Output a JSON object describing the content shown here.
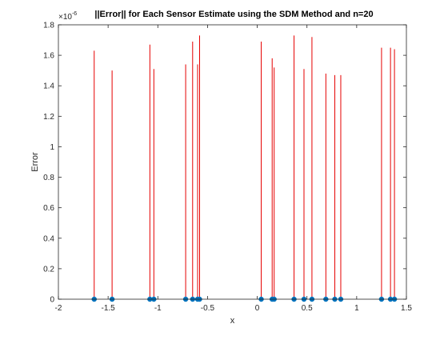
{
  "chart_data": {
    "type": "stem",
    "title": "||Error|| for Each Sensor Estimate using the SDM Method and n=20",
    "xlabel": "x",
    "ylabel": "Error",
    "xlim": [
      -2,
      1.5
    ],
    "ylim": [
      0,
      1.8
    ],
    "x_ticks": [
      -2,
      -1.5,
      -1,
      -0.5,
      0,
      0.5,
      1,
      1.5
    ],
    "x_tick_labels": [
      "-2",
      "-1.5",
      "-1",
      "-0.5",
      "0",
      "0.5",
      "1",
      "1.5"
    ],
    "y_ticks": [
      0,
      0.2,
      0.4,
      0.6,
      0.8,
      1,
      1.2,
      1.4,
      1.6,
      1.8
    ],
    "y_tick_labels": [
      "0",
      "0.2",
      "0.4",
      "0.6",
      "0.8",
      "1",
      "1.2",
      "1.4",
      "1.6",
      "1.8"
    ],
    "y_exponent_label": "×10",
    "y_exponent_power": "-6",
    "grid": false,
    "colors": {
      "stem": "#e60000",
      "marker": "#0072bd",
      "axis": "#262626"
    },
    "series": [
      {
        "name": "",
        "style": "stem-lines",
        "x": [
          -1.64,
          -1.46,
          -1.08,
          -1.04,
          -0.72,
          -0.65,
          -0.6,
          -0.58,
          0.04,
          0.15,
          0.17,
          0.37,
          0.47,
          0.55,
          0.69,
          0.78,
          0.84,
          1.25,
          1.34,
          1.38
        ],
        "y": [
          1.63,
          1.5,
          1.67,
          1.51,
          1.54,
          1.69,
          1.54,
          1.73,
          1.69,
          1.58,
          1.52,
          1.73,
          1.51,
          1.72,
          1.48,
          1.47,
          1.47,
          1.65,
          1.65,
          1.64
        ]
      },
      {
        "name": "",
        "style": "markers",
        "x": [
          -1.64,
          -1.46,
          -1.08,
          -1.04,
          -0.72,
          -0.65,
          -0.6,
          -0.58,
          0.04,
          0.15,
          0.17,
          0.37,
          0.47,
          0.55,
          0.69,
          0.78,
          0.84,
          1.25,
          1.34,
          1.38
        ],
        "y": [
          0,
          0,
          0,
          0,
          0,
          0,
          0,
          0,
          0,
          0,
          0,
          0,
          0,
          0,
          0,
          0,
          0,
          0,
          0,
          0
        ]
      }
    ]
  }
}
